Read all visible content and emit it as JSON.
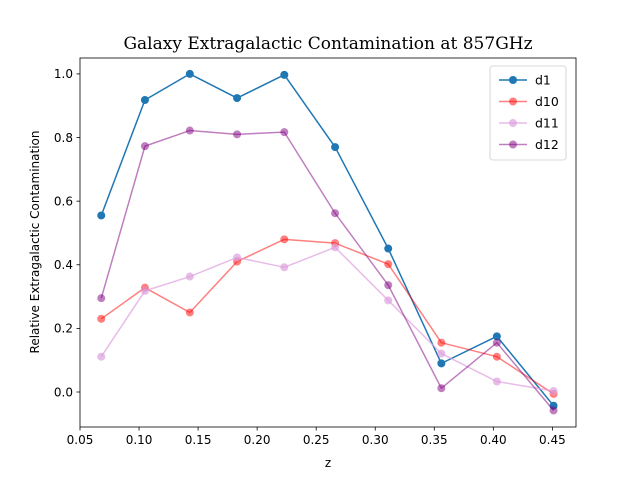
{
  "chart_data": {
    "type": "line",
    "title": "Galaxy Extragalactic Contamination at 857GHz",
    "xlabel": "z",
    "ylabel": "Relative Extragalactic Contamination",
    "xlim": [
      0.05,
      0.47
    ],
    "ylim": [
      -0.11,
      1.05
    ],
    "xticks": [
      0.05,
      0.1,
      0.15,
      0.2,
      0.25,
      0.3,
      0.35,
      0.4,
      0.45
    ],
    "xtick_labels": [
      "0.05",
      "0.10",
      "0.15",
      "0.20",
      "0.25",
      "0.30",
      "0.35",
      "0.40",
      "0.45"
    ],
    "yticks": [
      0.0,
      0.2,
      0.4,
      0.6,
      0.8,
      1.0
    ],
    "ytick_labels": [
      "0.0",
      "0.2",
      "0.4",
      "0.6",
      "0.8",
      "1.0"
    ],
    "grid": false,
    "legend_position": "top-right",
    "x": [
      0.068,
      0.105,
      0.143,
      0.183,
      0.223,
      0.266,
      0.311,
      0.356,
      0.403,
      0.451
    ],
    "series": [
      {
        "name": "d1",
        "color": "#1f77b4",
        "alpha": 1.0,
        "values": [
          0.555,
          0.918,
          1.0,
          0.924,
          0.997,
          0.77,
          0.451,
          0.09,
          0.175,
          -0.043
        ]
      },
      {
        "name": "d10",
        "color": "#ff0000",
        "alpha": 0.5,
        "values": [
          0.23,
          0.328,
          0.25,
          0.41,
          0.48,
          0.468,
          0.402,
          0.155,
          0.111,
          -0.006
        ]
      },
      {
        "name": "d11",
        "color": "#dda0dd",
        "alpha": 0.7,
        "values": [
          0.111,
          0.318,
          0.363,
          0.423,
          0.392,
          0.455,
          0.288,
          0.121,
          0.033,
          0.003
        ]
      },
      {
        "name": "d12",
        "color": "#800080",
        "alpha": 0.5,
        "values": [
          0.295,
          0.773,
          0.822,
          0.81,
          0.817,
          0.562,
          0.336,
          0.012,
          0.155,
          -0.058
        ]
      }
    ]
  }
}
